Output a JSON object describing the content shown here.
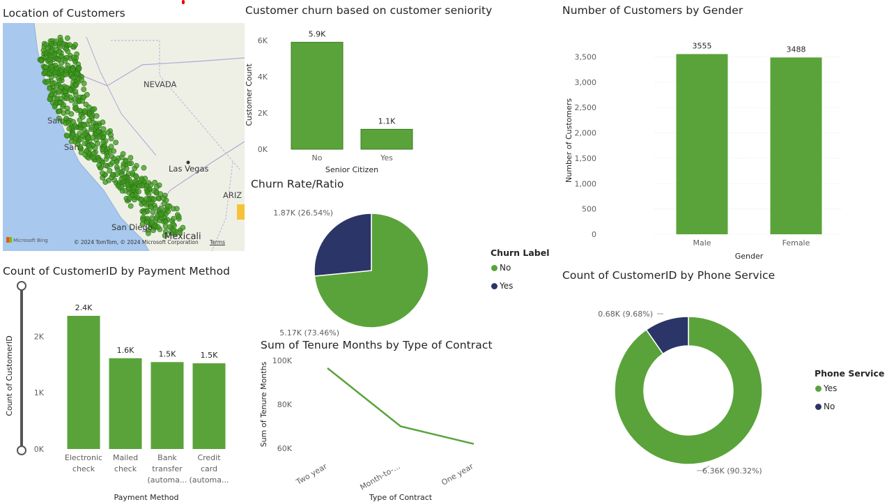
{
  "colors": {
    "green": "#5aa33a",
    "navy": "#2b3568",
    "map_green": "#3e9a1f",
    "water": "#a8c8ee",
    "land": "#f0f0e4"
  },
  "map": {
    "title": "Location of Customers",
    "places": [
      "NEVADA",
      "San",
      "San",
      "Las Vegas",
      "ARIZ",
      "San Diego",
      "Mexicali"
    ],
    "attribution": "© 2024 TomTom, © 2024 Microsoft Corporation",
    "terms": "Terms",
    "brand": "Microsoft Bing"
  },
  "charts": {
    "senior": {
      "title": "Customer churn based on customer seniority"
    },
    "churn": {
      "title": "Churn Rate/Ratio",
      "legend_title": "Churn Label"
    },
    "tenure": {
      "title": "Sum of Tenure Months by Type of Contract"
    },
    "gender": {
      "title": "Number of Customers by Gender"
    },
    "phone": {
      "title": "Count of CustomerID by Phone Service",
      "legend_title": "Phone Service"
    },
    "payment": {
      "title": "Count of CustomerID by Payment Method"
    }
  },
  "chart_data": [
    {
      "type": "bar",
      "id": "senior",
      "title": "Customer churn based on customer seniority",
      "categories": [
        "No",
        "Yes"
      ],
      "values": [
        5900,
        1100
      ],
      "data_labels": [
        "5.9K",
        "1.1K"
      ],
      "xlabel": "Senior Citizen",
      "ylabel": "Customer Count",
      "yticks": [
        "0K",
        "2K",
        "4K",
        "6K"
      ],
      "ylim": [
        0,
        6000
      ]
    },
    {
      "type": "pie",
      "id": "churn",
      "title": "Churn Rate/Ratio",
      "labels": [
        "No",
        "Yes"
      ],
      "values": [
        5170,
        1870
      ],
      "percents": [
        73.46,
        26.54
      ],
      "data_labels": [
        "5.17K (73.46%)",
        "1.87K (26.54%)"
      ],
      "legend_title": "Churn Label"
    },
    {
      "type": "line",
      "id": "tenure",
      "title": "Sum of Tenure Months by Type of Contract",
      "categories": [
        "Two year",
        "Month-to-...",
        "One year"
      ],
      "values": [
        96500,
        70000,
        62000
      ],
      "xlabel": "Type of Contract",
      "ylabel": "Sum of Tenure Months",
      "yticks": [
        "60K",
        "80K",
        "100K"
      ],
      "ylim": [
        60000,
        100000
      ]
    },
    {
      "type": "bar",
      "id": "gender",
      "title": "Number of Customers by Gender",
      "categories": [
        "Male",
        "Female"
      ],
      "values": [
        3555,
        3488
      ],
      "data_labels": [
        "3555",
        "3488"
      ],
      "xlabel": "Gender",
      "ylabel": "Number of Customers",
      "yticks": [
        "0",
        "500",
        "1,000",
        "1,500",
        "2,000",
        "2,500",
        "3,000",
        "3,500"
      ],
      "ylim": [
        0,
        3700
      ]
    },
    {
      "type": "pie",
      "id": "phone",
      "donut": true,
      "title": "Count of CustomerID by Phone Service",
      "labels": [
        "Yes",
        "No"
      ],
      "values": [
        6360,
        680
      ],
      "percents": [
        90.32,
        9.68
      ],
      "data_labels": [
        "6.36K (90.32%)",
        "0.68K (9.68%)"
      ],
      "legend_title": "Phone Service"
    },
    {
      "type": "bar",
      "id": "payment",
      "title": "Count of CustomerID by Payment Method",
      "categories": [
        [
          "Electronic",
          "check"
        ],
        [
          "Mailed",
          "check"
        ],
        [
          "Bank",
          "transfer",
          "(automa..."
        ],
        [
          "Credit",
          "card",
          "(automa..."
        ]
      ],
      "values": [
        2365,
        1612,
        1544,
        1522
      ],
      "data_labels": [
        "2.4K",
        "1.6K",
        "1.5K",
        "1.5K"
      ],
      "xlabel": "Payment Method",
      "ylabel": "Count of CustomerID",
      "yticks": [
        "0K",
        "1K",
        "2K"
      ],
      "ylim": [
        0,
        2600
      ]
    }
  ]
}
